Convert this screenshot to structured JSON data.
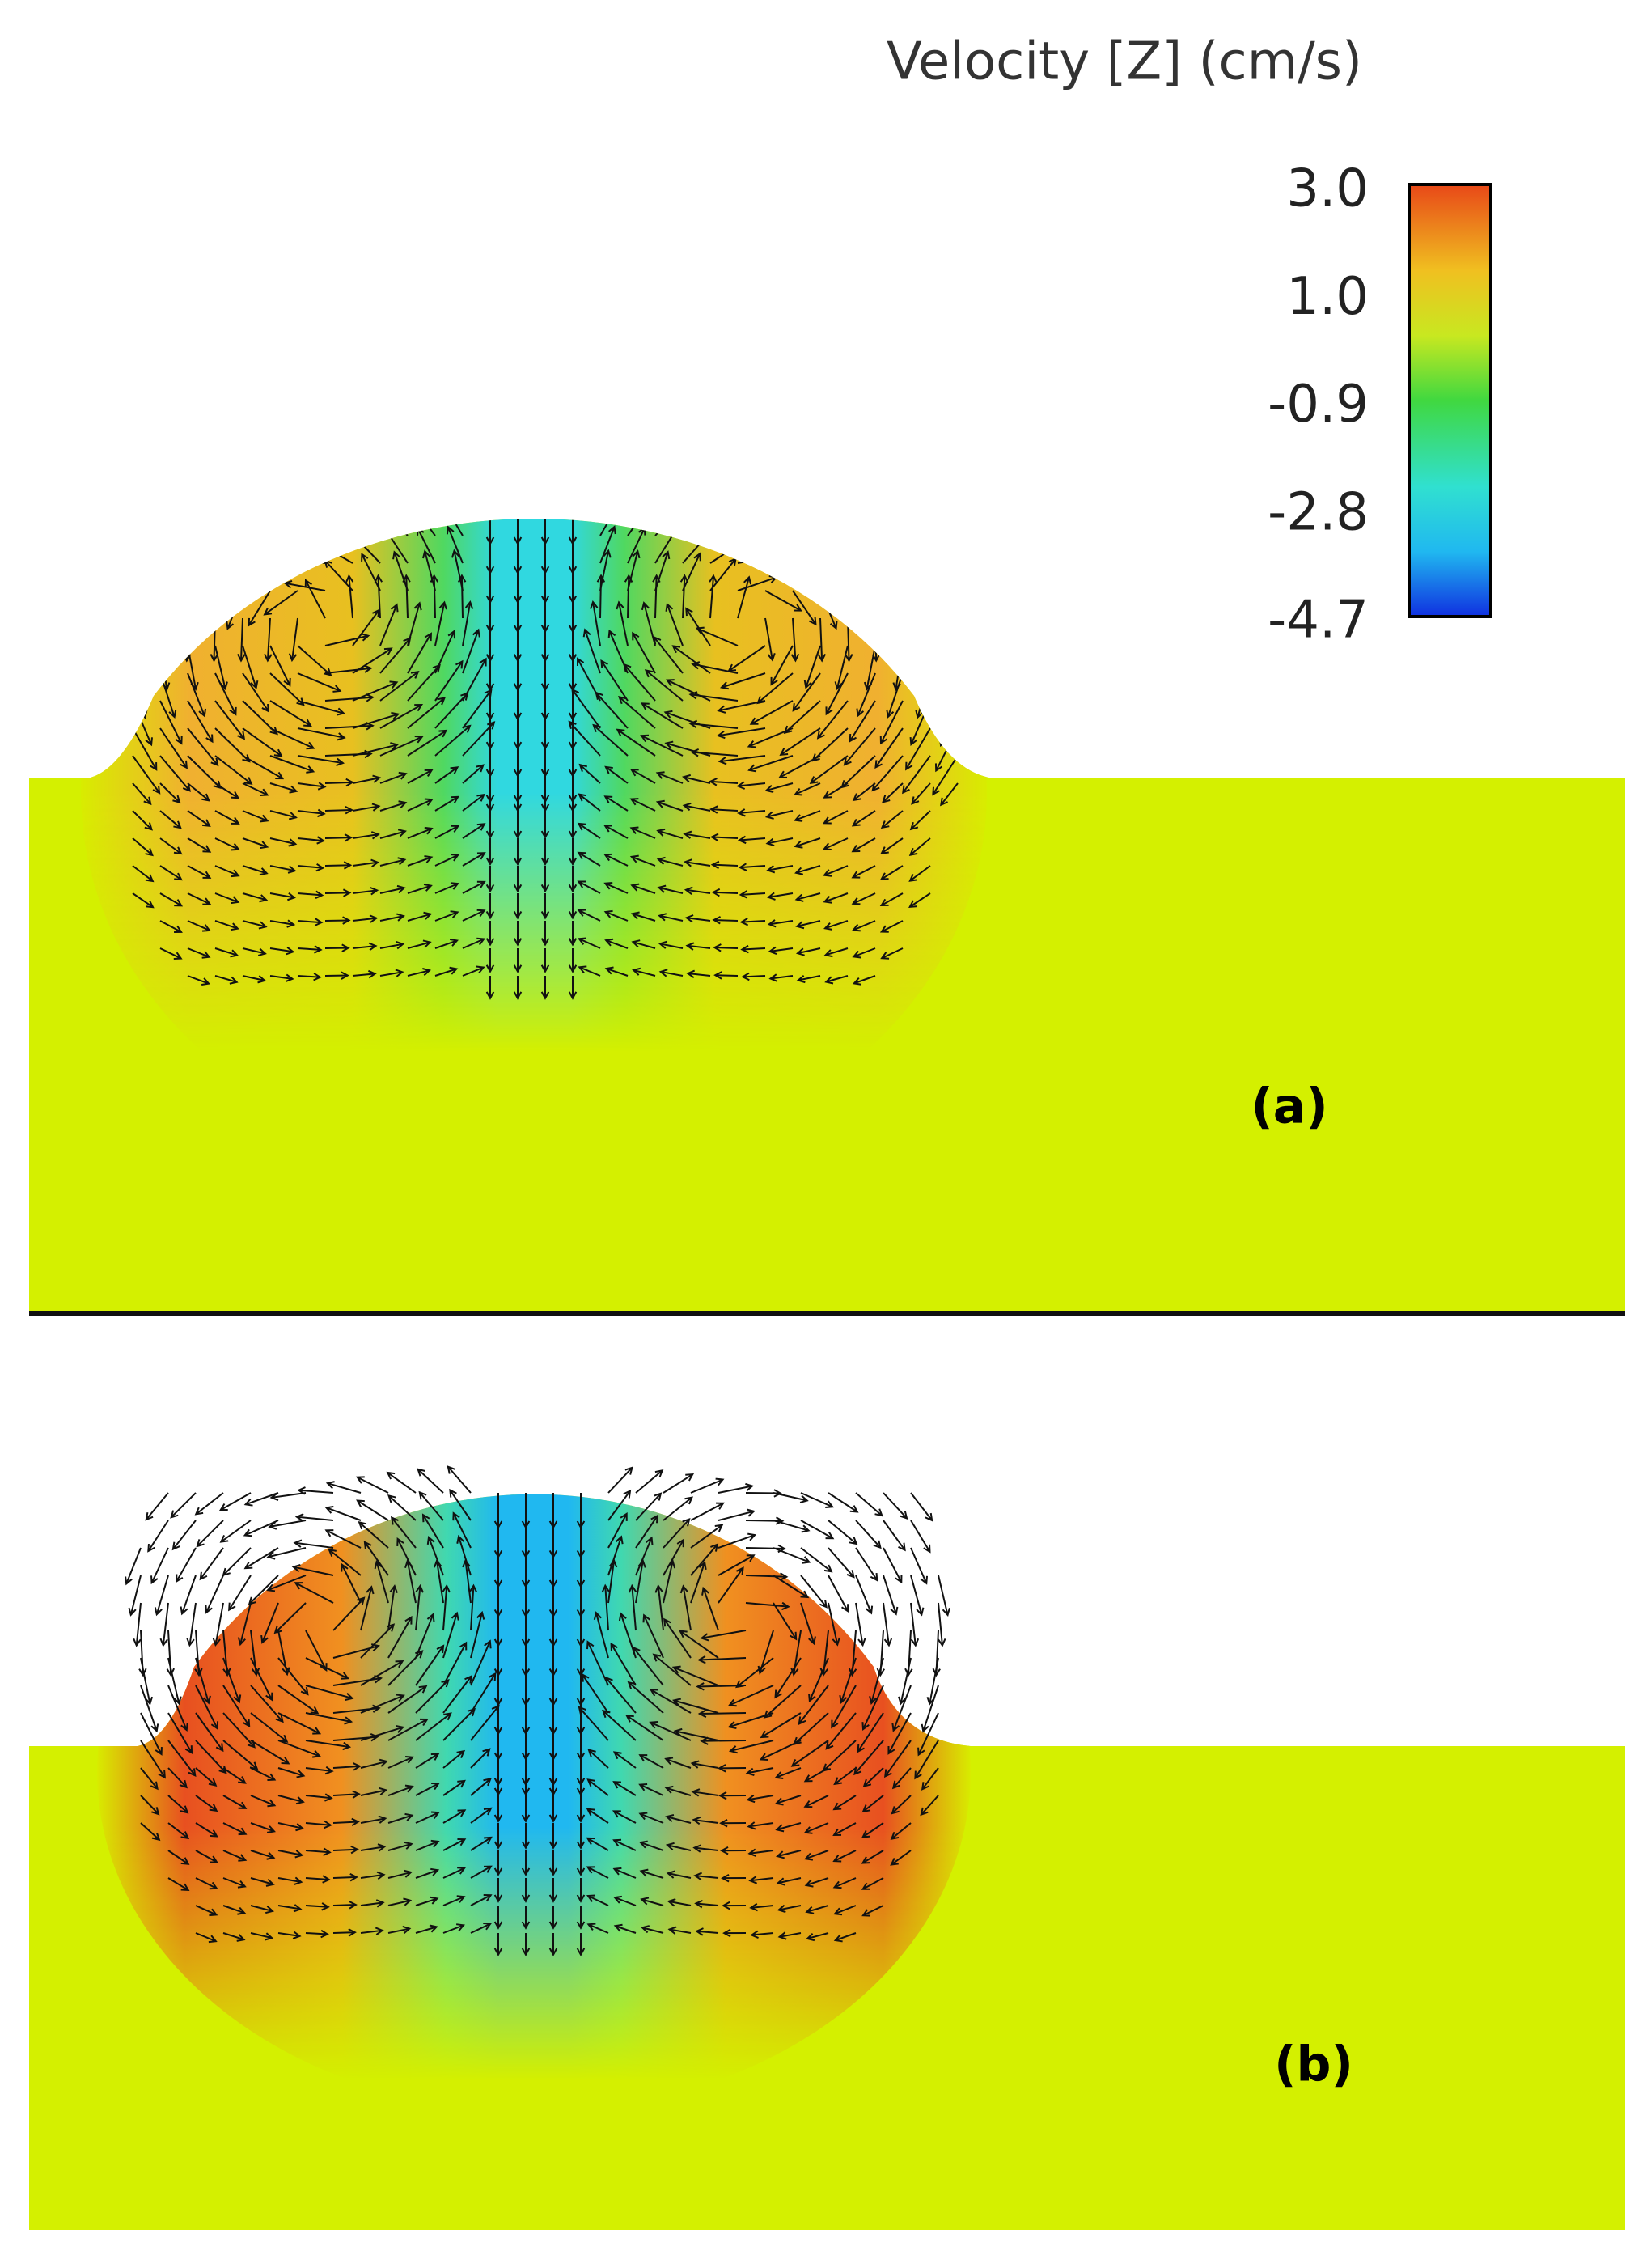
{
  "colorbar": {
    "title": "Velocity [Z] (cm/s)",
    "ticks": [
      "3.0",
      "1.0",
      "-0.9",
      "-2.8",
      "-4.7"
    ]
  },
  "panels": [
    {
      "label": "(a)"
    },
    {
      "label": "(b)"
    }
  ]
}
